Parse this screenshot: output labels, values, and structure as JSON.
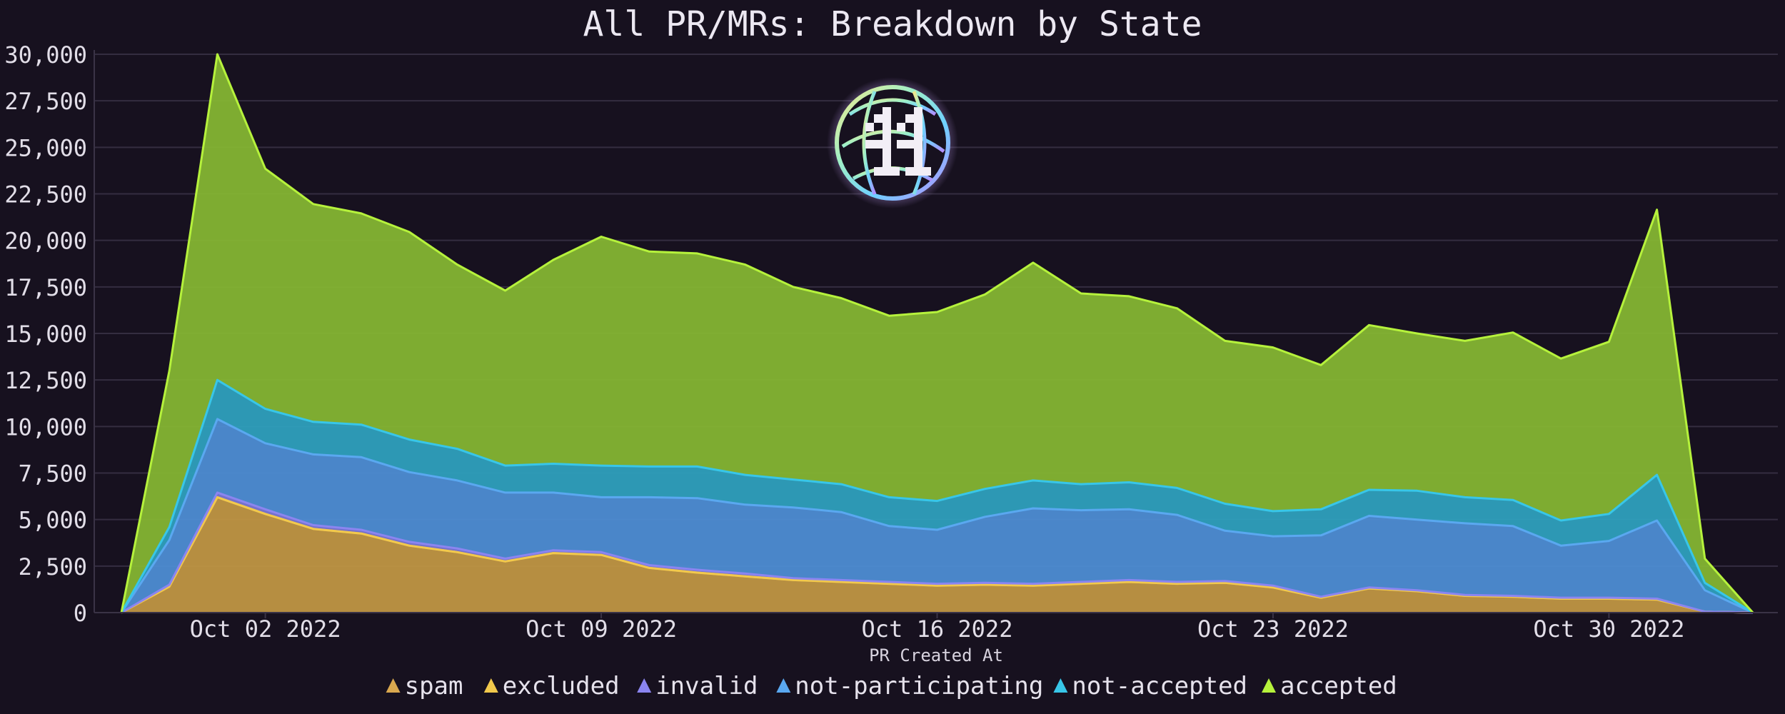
{
  "chart_data": {
    "type": "area",
    "stacked": true,
    "title": "All PR/MRs: Breakdown by State",
    "xlabel": "PR Created At",
    "ylabel": "",
    "ylim": [
      0,
      30000
    ],
    "y_ticks": [
      "0",
      "2,500",
      "5,000",
      "7,500",
      "10,000",
      "12,500",
      "15,000",
      "17,500",
      "20,000",
      "22,500",
      "25,000",
      "27,500",
      "30,000"
    ],
    "x_ticks": [
      {
        "date": "2022-10-02",
        "label": "Oct 02 2022"
      },
      {
        "date": "2022-10-09",
        "label": "Oct 09 2022"
      },
      {
        "date": "2022-10-16",
        "label": "Oct 16 2022"
      },
      {
        "date": "2022-10-23",
        "label": "Oct 23 2022"
      },
      {
        "date": "2022-10-30",
        "label": "Oct 30 2022"
      }
    ],
    "grid": true,
    "legend_position": "bottom",
    "logo": "hacktoberfest-globe-logo",
    "x": [
      "2022-09-29",
      "2022-09-30",
      "2022-10-01",
      "2022-10-02",
      "2022-10-03",
      "2022-10-04",
      "2022-10-05",
      "2022-10-06",
      "2022-10-07",
      "2022-10-08",
      "2022-10-09",
      "2022-10-10",
      "2022-10-11",
      "2022-10-12",
      "2022-10-13",
      "2022-10-14",
      "2022-10-15",
      "2022-10-16",
      "2022-10-17",
      "2022-10-18",
      "2022-10-19",
      "2022-10-20",
      "2022-10-21",
      "2022-10-22",
      "2022-10-23",
      "2022-10-24",
      "2022-10-25",
      "2022-10-26",
      "2022-10-27",
      "2022-10-28",
      "2022-10-29",
      "2022-10-30",
      "2022-10-31",
      "2022-11-01",
      "2022-11-02"
    ],
    "series": [
      {
        "name": "spam",
        "color": "#d9a84f",
        "fill": "#c39844",
        "values": [
          0,
          1400,
          6200,
          5300,
          4500,
          4250,
          3600,
          3250,
          2750,
          3200,
          3100,
          2400,
          2150,
          1950,
          1750,
          1650,
          1550,
          1450,
          1500,
          1450,
          1550,
          1650,
          1550,
          1600,
          1350,
          800,
          1300,
          1150,
          900,
          850,
          750,
          750,
          700,
          50,
          0
        ]
      },
      {
        "name": "excluded",
        "color": "#f2c94c",
        "fill": "#e6bf47",
        "values": [
          0,
          0,
          0,
          0,
          0,
          0,
          0,
          0,
          0,
          0,
          0,
          0,
          0,
          0,
          0,
          0,
          0,
          0,
          0,
          0,
          0,
          0,
          0,
          0,
          0,
          0,
          0,
          0,
          0,
          0,
          0,
          0,
          0,
          0,
          0
        ]
      },
      {
        "name": "invalid",
        "color": "#8b85f0",
        "fill": "#7d78d8",
        "values": [
          0,
          100,
          250,
          250,
          200,
          200,
          200,
          200,
          150,
          150,
          150,
          150,
          150,
          150,
          100,
          100,
          100,
          100,
          100,
          100,
          100,
          100,
          100,
          100,
          100,
          50,
          50,
          50,
          50,
          50,
          50,
          50,
          50,
          0,
          0
        ]
      },
      {
        "name": "not-participating",
        "color": "#5aa8f0",
        "fill": "#4f8fd6",
        "values": [
          0,
          2400,
          3950,
          3550,
          3800,
          3900,
          3750,
          3650,
          3550,
          3100,
          2950,
          3650,
          3850,
          3700,
          3800,
          3650,
          3000,
          2900,
          3550,
          4050,
          3850,
          3800,
          3600,
          2700,
          2650,
          3300,
          3850,
          3800,
          3850,
          3750,
          2800,
          3050,
          4200,
          1150,
          0
        ]
      },
      {
        "name": "not-accepted",
        "color": "#38c6e8",
        "fill": "#2fa3c0",
        "values": [
          0,
          700,
          2100,
          1850,
          1750,
          1750,
          1750,
          1700,
          1450,
          1550,
          1700,
          1650,
          1700,
          1600,
          1500,
          1500,
          1550,
          1550,
          1500,
          1500,
          1400,
          1450,
          1450,
          1450,
          1350,
          1400,
          1400,
          1550,
          1400,
          1400,
          1350,
          1450,
          2450,
          400,
          0
        ]
      },
      {
        "name": "accepted",
        "color": "#b6f23c",
        "fill": "#86b833",
        "values": [
          0,
          8400,
          17500,
          12900,
          11700,
          11350,
          11150,
          9900,
          9400,
          10950,
          12300,
          11550,
          11450,
          11300,
          10350,
          10000,
          9750,
          10150,
          10450,
          11700,
          10250,
          10000,
          9650,
          8750,
          8800,
          7750,
          8850,
          8450,
          8400,
          9000,
          8700,
          9250,
          14250,
          1300,
          0
        ]
      }
    ]
  }
}
